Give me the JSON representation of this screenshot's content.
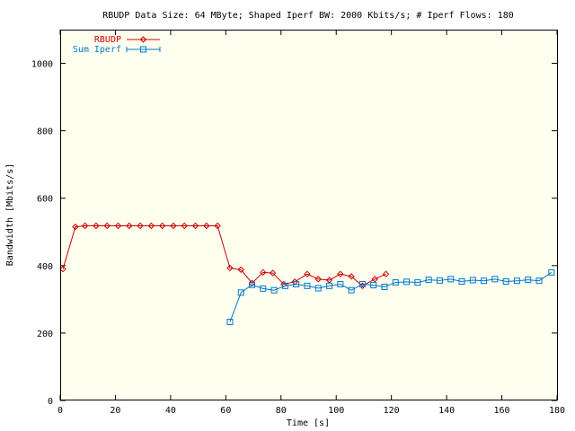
{
  "chart_data": {
    "type": "line",
    "title": "RBUDP Data Size: 64 MByte; Shaped Iperf BW: 2000 Kbits/s; # Iperf Flows: 180",
    "xlabel": "Time [s]",
    "ylabel": "Bandwidth [Mbits/s]",
    "xlim": [
      0,
      180
    ],
    "ylim": [
      0,
      1100
    ],
    "xticks": [
      0,
      20,
      40,
      60,
      80,
      100,
      120,
      140,
      160,
      180
    ],
    "yticks": [
      0,
      200,
      400,
      600,
      800,
      1000
    ],
    "grid": false,
    "legend_position": "top-left",
    "series": [
      {
        "name": "RBUDP",
        "color": "#cc0000",
        "marker": "diamond",
        "x": [
          1,
          5.5,
          9,
          13,
          17,
          21,
          25,
          29,
          33,
          37,
          41,
          45,
          49,
          53,
          57,
          61.5,
          65.5,
          69.5,
          73.5,
          77,
          81,
          85,
          89.5,
          93.5,
          97.5,
          101.5,
          105.5,
          109.5,
          114,
          118
        ],
        "y": [
          390,
          515,
          518,
          518,
          518,
          518,
          518,
          518,
          518,
          518,
          518,
          518,
          518,
          518,
          518,
          393,
          388,
          348,
          380,
          378,
          345,
          352,
          375,
          360,
          357,
          375,
          368,
          340,
          360,
          375
        ]
      },
      {
        "name": "Sum Iperf",
        "color": "#0077cc",
        "marker": "square",
        "x": [
          61.5,
          65.5,
          69.5,
          73.5,
          77.5,
          81.5,
          85.5,
          89.5,
          93.5,
          97.5,
          101.5,
          105.5,
          109.5,
          113.5,
          117.5,
          121.5,
          125.5,
          129.5,
          133.5,
          137.5,
          141.5,
          145.5,
          149.5,
          153.5,
          157.5,
          161.5,
          165.5,
          169.5,
          173.5,
          178
        ],
        "y": [
          233,
          320,
          343,
          332,
          327,
          340,
          345,
          340,
          333,
          340,
          345,
          327,
          345,
          342,
          337,
          350,
          352,
          350,
          358,
          356,
          360,
          353,
          357,
          355,
          360,
          353,
          355,
          358,
          355,
          380
        ]
      }
    ]
  }
}
